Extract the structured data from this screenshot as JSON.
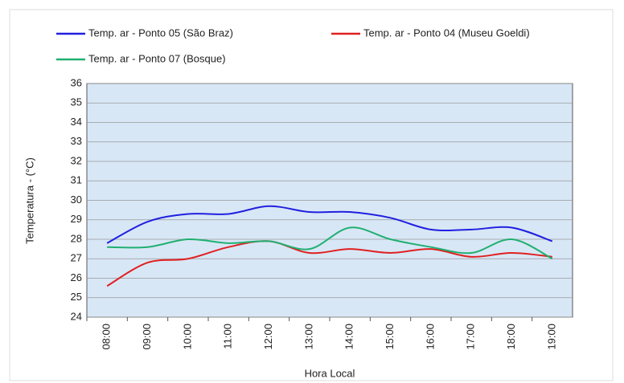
{
  "chart_data": {
    "type": "line",
    "xlabel": "Hora  Local",
    "ylabel": "Temperatura - (°C)",
    "categories": [
      "08:00",
      "09:00",
      "10:00",
      "11:00",
      "12:00",
      "13:00",
      "14:00",
      "15:00",
      "16:00",
      "17:00",
      "18:00",
      "19:00"
    ],
    "series": [
      {
        "name": "Temp. ar - Ponto 05 (São Braz)",
        "color": "#2020e0",
        "values": [
          27.8,
          28.9,
          29.3,
          29.3,
          29.7,
          29.4,
          29.4,
          29.1,
          28.5,
          28.5,
          28.6,
          27.9
        ]
      },
      {
        "name": "Temp. ar - Ponto 04 (Museu Goeldi)",
        "color": "#e02020",
        "values": [
          25.6,
          26.8,
          27.0,
          27.6,
          27.9,
          27.3,
          27.5,
          27.3,
          27.5,
          27.1,
          27.3,
          27.1
        ]
      },
      {
        "name": "Temp. ar - Ponto 07 (Bosque)",
        "color": "#20b070",
        "values": [
          27.6,
          27.6,
          28.0,
          27.8,
          27.9,
          27.5,
          28.6,
          28.0,
          27.6,
          27.3,
          28.0,
          27.0
        ]
      }
    ],
    "ylim": [
      24,
      36
    ],
    "yticks": [
      24,
      25,
      26,
      27,
      28,
      29,
      30,
      31,
      32,
      33,
      34,
      35,
      36
    ],
    "grid": true
  }
}
